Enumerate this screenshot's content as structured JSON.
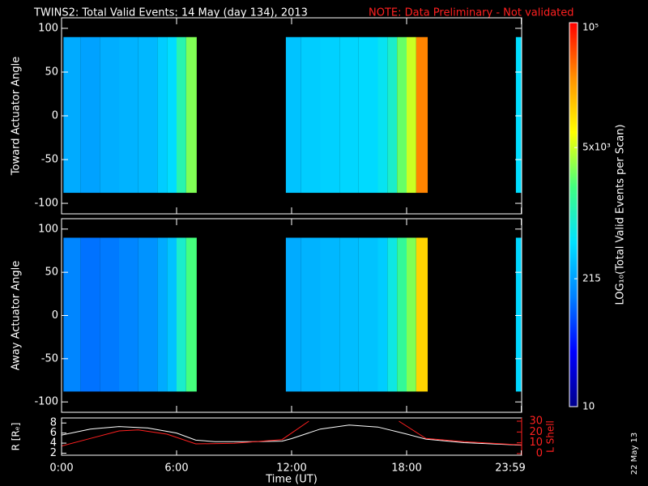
{
  "chart_data": {
    "type": "spectrogram",
    "title": "TWINS2: Total Valid Events: 14 May (day 134), 2013",
    "note": "NOTE: Data Preliminary - Not validated",
    "note_color": "#ff2020",
    "xlabel": "Time (UT)",
    "xlim": [
      0,
      24
    ],
    "xticks": [
      {
        "value": 0,
        "label": "0:00"
      },
      {
        "value": 6,
        "label": "6:00"
      },
      {
        "value": 12,
        "label": "12:00"
      },
      {
        "value": 18,
        "label": "18:00"
      },
      {
        "value": 23.983,
        "label": "23:59"
      }
    ],
    "bins": [
      0.1,
      1,
      2,
      3,
      4,
      5,
      5.5,
      6,
      6.5,
      7.05,
      11.7,
      12.5,
      13.5,
      14.5,
      15.5,
      16.5,
      17,
      17.5,
      18,
      18.5,
      19.1,
      23.7,
      24
    ],
    "panels": [
      {
        "ylabel": "Toward Actuator Angle",
        "ylim": [
          -112,
          112
        ],
        "yticks": [
          100,
          50,
          0,
          -50,
          -100
        ],
        "y_extent": [
          -88,
          90
        ],
        "values": [
          250,
          220,
          260,
          280,
          300,
          400,
          500,
          1200,
          3000,
          null,
          350,
          400,
          420,
          450,
          480,
          600,
          900,
          2500,
          5000,
          30000,
          null,
          500
        ]
      },
      {
        "ylabel": "Away Actuator Angle",
        "ylim": [
          -112,
          112
        ],
        "yticks": [
          100,
          50,
          0,
          -50,
          -100
        ],
        "y_extent": [
          -88,
          90
        ],
        "values": [
          150,
          120,
          130,
          150,
          180,
          250,
          350,
          900,
          2000,
          null,
          250,
          280,
          300,
          320,
          350,
          400,
          700,
          1500,
          3000,
          12000,
          null,
          450
        ]
      }
    ],
    "colorbar": {
      "label": "LOG₁₀(Total Valid Events per Scan)",
      "clim": [
        10,
        100000
      ],
      "log": true,
      "colormap": [
        "#00008c",
        "#0000ff",
        "#0080ff",
        "#00e0ff",
        "#40ff80",
        "#ffff00",
        "#ff9000",
        "#ff0000"
      ],
      "ticks": [
        {
          "value": 10,
          "label": "10"
        },
        {
          "value": 215,
          "label": "215"
        },
        {
          "value": 5000,
          "label": "5x10³"
        },
        {
          "value": 100000,
          "label": "10⁵"
        }
      ]
    },
    "orbit": {
      "ylabel": "R [Rₑ]",
      "ylim": [
        1.6,
        9
      ],
      "yticks": [
        2,
        4,
        6,
        8
      ],
      "y2label": "L Shell",
      "y2lim": [
        -1.5,
        33
      ],
      "y2ticks": [
        0,
        10,
        20,
        30
      ],
      "series": [
        {
          "name": "R",
          "color": "#ffffff",
          "x": [
            0,
            1.5,
            3,
            4.5,
            6,
            7,
            8,
            10,
            11.5,
            12,
            13.5,
            15,
            16.5,
            18,
            19,
            21,
            24
          ],
          "values": [
            5.6,
            6.8,
            7.3,
            7,
            6,
            4.6,
            4.3,
            4.3,
            4.4,
            4.9,
            6.8,
            7.6,
            7.2,
            5.8,
            4.8,
            4.1,
            3.6
          ]
        },
        {
          "name": "L Shell",
          "color": "#ff2020",
          "axis": "y2",
          "x": [
            0,
            1.5,
            3,
            4,
            5.5,
            7,
            9,
            11.5,
            12.9,
            15,
            17.6,
            19,
            21,
            24
          ],
          "values": [
            7,
            14,
            21,
            22,
            18,
            9,
            9.5,
            13,
            30,
            null,
            30,
            14,
            11,
            8
          ]
        }
      ]
    },
    "footer": "22 May 13"
  }
}
